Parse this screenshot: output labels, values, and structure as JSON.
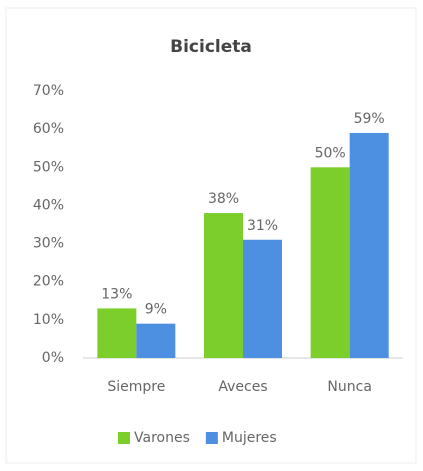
{
  "chart_data": {
    "type": "bar",
    "title": "Bicicleta",
    "categories": [
      "Siempre",
      "Aveces",
      "Nunca"
    ],
    "series": [
      {
        "name": "Varones",
        "color": "#7ccf2a",
        "values": [
          13,
          38,
          50
        ],
        "value_labels": [
          "13%",
          "38%",
          "50%"
        ]
      },
      {
        "name": "Mujeres",
        "color": "#4d8fe0",
        "values": [
          9,
          31,
          59
        ],
        "value_labels": [
          "9%",
          "31%",
          "59%"
        ]
      }
    ],
    "ylim": [
      0,
      70
    ],
    "yticks": [
      {
        "value": 0,
        "label": "0%"
      },
      {
        "value": 10,
        "label": "10%"
      },
      {
        "value": 20,
        "label": "20%"
      },
      {
        "value": 30,
        "label": "30%"
      },
      {
        "value": 40,
        "label": "40%"
      },
      {
        "value": 50,
        "label": "50%"
      },
      {
        "value": 60,
        "label": "60%"
      },
      {
        "value": 70,
        "label": "70%"
      }
    ],
    "grid": false,
    "legend": "bottom"
  }
}
